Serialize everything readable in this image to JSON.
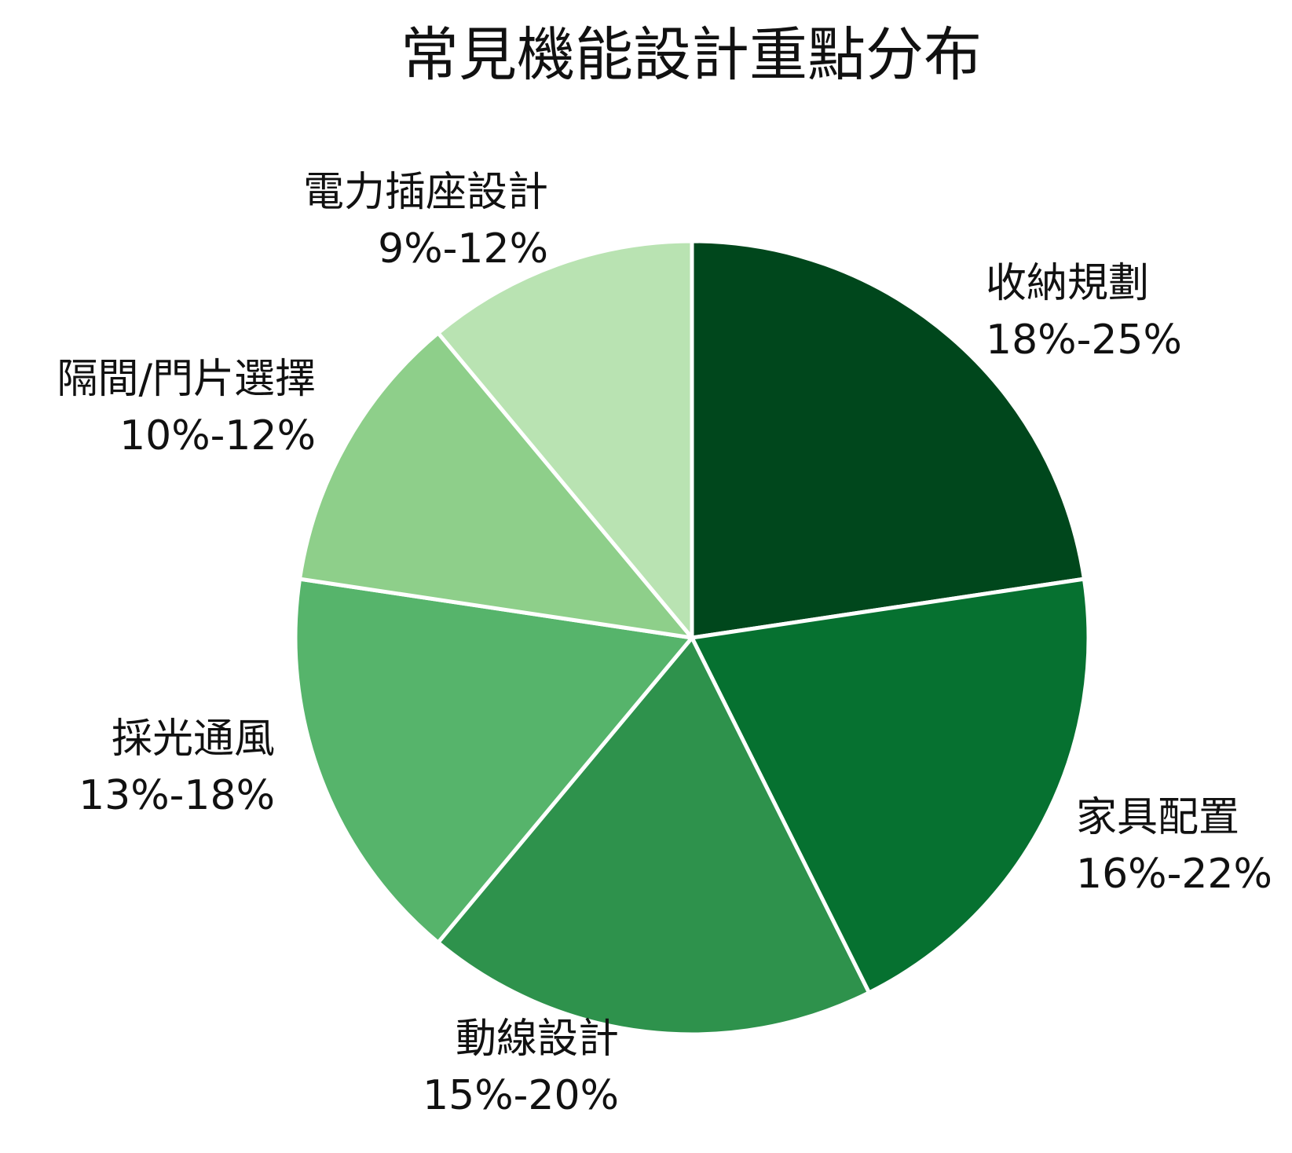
{
  "chart_data": {
    "type": "pie",
    "title": "常見機能設計重點分布",
    "slices": [
      {
        "name": "收納規劃",
        "range": "18%-25%",
        "value": 21.5,
        "color": "#00471c"
      },
      {
        "name": "家具配置",
        "range": "16%-22%",
        "value": 19.0,
        "color": "#067130"
      },
      {
        "name": "動線設計",
        "range": "15%-20%",
        "value": 17.5,
        "color": "#2e924c"
      },
      {
        "name": "採光通風",
        "range": "13%-18%",
        "value": 15.5,
        "color": "#56b46b"
      },
      {
        "name": "隔間/門片選擇",
        "range": "10%-12%",
        "value": 11.0,
        "color": "#8ecf8a"
      },
      {
        "name": "電力插座設計",
        "range": "9%-12%",
        "value": 10.5,
        "color": "#b9e3b2"
      }
    ],
    "start_angle": "12 o'clock",
    "direction": "clockwise",
    "slice_border_color": "#ffffff"
  }
}
